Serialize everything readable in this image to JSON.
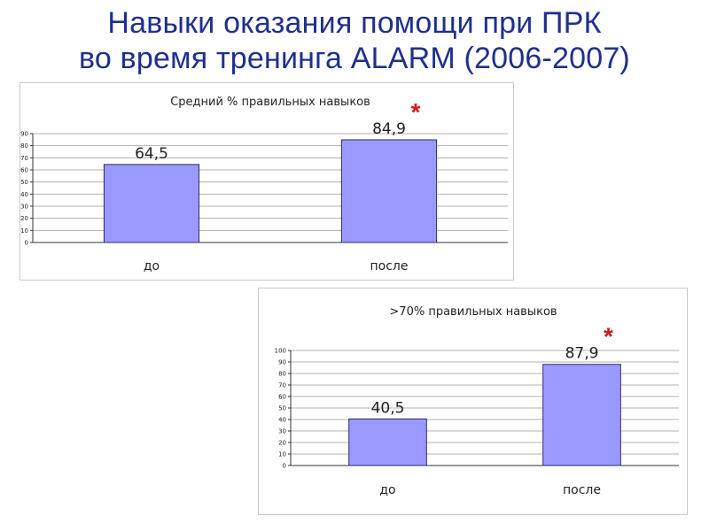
{
  "slide": {
    "title_line1": "Навыки оказания помощи при ПРК",
    "title_line2": "во время тренинга ALARM (2006-2007)"
  },
  "colors": {
    "title": "#1f2f8f",
    "bar_fill": "#9999ff",
    "bar_stroke": "#2b2b6b",
    "grid": "#b0b0b0",
    "star": "#d11a1a"
  },
  "chart_data": [
    {
      "type": "bar",
      "title": "Средний %  правильных навыков",
      "categories": [
        "до",
        "после"
      ],
      "values": [
        64.5,
        84.9
      ],
      "value_labels": [
        "64,5",
        "84,9"
      ],
      "significance_marker": "*",
      "marked_index": 1,
      "ylim": [
        0,
        90
      ],
      "ytick_step": 10,
      "grid": true,
      "legend": "none"
    },
    {
      "type": "bar",
      "title": ">70% правильных навыков",
      "categories": [
        "до",
        "после"
      ],
      "values": [
        40.5,
        87.9
      ],
      "value_labels": [
        "40,5",
        "87,9"
      ],
      "significance_marker": "*",
      "marked_index": 1,
      "ylim": [
        0,
        100
      ],
      "ytick_step": 10,
      "grid": true,
      "legend": "none"
    }
  ]
}
